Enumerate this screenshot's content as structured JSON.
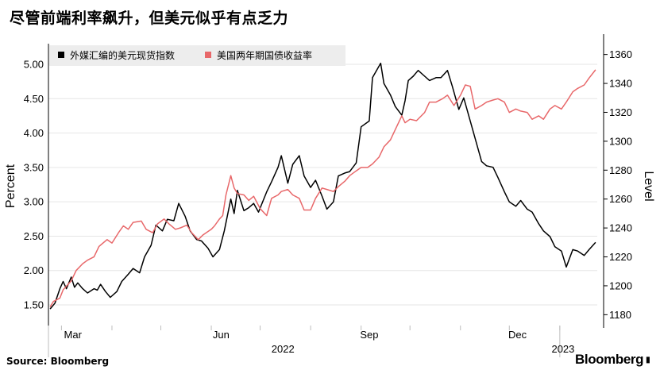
{
  "header": {
    "title": "尽管前端利率飙升，但美元似乎有点乏力"
  },
  "footer": {
    "source": "Source: Bloomberg",
    "brand": "Bloomberg"
  },
  "colors": {
    "dxy": "#000000",
    "yield": "#e8686a",
    "grid": "#e6e6e6",
    "legend_bg": "#ededed",
    "tick": "#bdbdbd"
  },
  "chart_data": {
    "type": "line",
    "title": "尽管前端利率飙升，但美元似乎有点乏力",
    "x_axis": {
      "range": [
        "2022-02-21",
        "2023-01-24"
      ],
      "month_labels": [
        {
          "label": "Mar",
          "date": "2022-03-08"
        },
        {
          "label": "Jun",
          "date": "2022-06-07"
        },
        {
          "label": "Sep",
          "date": "2022-09-06"
        },
        {
          "label": "Dec",
          "date": "2022-12-06"
        }
      ],
      "year_labels": [
        {
          "label": "2022",
          "date": "2022-07-15"
        },
        {
          "label": "2023",
          "date": "2023-01-03"
        }
      ]
    },
    "left_axis": {
      "label": "Percent",
      "range": [
        1.2,
        5.3
      ],
      "ticks": [
        "1.50",
        "2.00",
        "2.50",
        "3.00",
        "3.50",
        "4.00",
        "4.50",
        "5.00"
      ]
    },
    "right_axis": {
      "label": "Level",
      "range": [
        1172.5,
        1367.5
      ],
      "ticks": [
        "1180",
        "1200",
        "1220",
        "1240",
        "1260",
        "1280",
        "1300",
        "1320",
        "1340",
        "1360"
      ]
    },
    "legend": {
      "position": "top-left"
    },
    "series": [
      {
        "name": "外媒汇编的美元现货指数",
        "axis": "right",
        "data": [
          [
            "2022-02-22",
            1184
          ],
          [
            "2022-02-25",
            1188
          ],
          [
            "2022-02-28",
            1198
          ],
          [
            "2022-03-02",
            1203
          ],
          [
            "2022-03-04",
            1198
          ],
          [
            "2022-03-07",
            1206
          ],
          [
            "2022-03-09",
            1199
          ],
          [
            "2022-03-11",
            1202
          ],
          [
            "2022-03-14",
            1198
          ],
          [
            "2022-03-17",
            1195
          ],
          [
            "2022-03-21",
            1198
          ],
          [
            "2022-03-23",
            1197
          ],
          [
            "2022-03-25",
            1201
          ],
          [
            "2022-03-28",
            1196
          ],
          [
            "2022-03-31",
            1192
          ],
          [
            "2022-04-04",
            1196
          ],
          [
            "2022-04-07",
            1203
          ],
          [
            "2022-04-11",
            1208
          ],
          [
            "2022-04-14",
            1212
          ],
          [
            "2022-04-18",
            1209
          ],
          [
            "2022-04-21",
            1220
          ],
          [
            "2022-04-25",
            1228
          ],
          [
            "2022-04-28",
            1242
          ],
          [
            "2022-05-02",
            1238
          ],
          [
            "2022-05-05",
            1246
          ],
          [
            "2022-05-09",
            1245
          ],
          [
            "2022-05-12",
            1257
          ],
          [
            "2022-05-16",
            1248
          ],
          [
            "2022-05-19",
            1238
          ],
          [
            "2022-05-23",
            1232
          ],
          [
            "2022-05-26",
            1231
          ],
          [
            "2022-05-30",
            1226
          ],
          [
            "2022-06-02",
            1220
          ],
          [
            "2022-06-06",
            1225
          ],
          [
            "2022-06-09",
            1238
          ],
          [
            "2022-06-13",
            1260
          ],
          [
            "2022-06-15",
            1250
          ],
          [
            "2022-06-17",
            1266
          ],
          [
            "2022-06-21",
            1252
          ],
          [
            "2022-06-24",
            1254
          ],
          [
            "2022-06-27",
            1257
          ],
          [
            "2022-06-30",
            1251
          ],
          [
            "2022-07-05",
            1265
          ],
          [
            "2022-07-08",
            1272
          ],
          [
            "2022-07-12",
            1282
          ],
          [
            "2022-07-14",
            1290
          ],
          [
            "2022-07-18",
            1271
          ],
          [
            "2022-07-21",
            1284
          ],
          [
            "2022-07-25",
            1290
          ],
          [
            "2022-07-28",
            1276
          ],
          [
            "2022-08-01",
            1268
          ],
          [
            "2022-08-04",
            1273
          ],
          [
            "2022-08-08",
            1262
          ],
          [
            "2022-08-11",
            1253
          ],
          [
            "2022-08-15",
            1258
          ],
          [
            "2022-08-18",
            1276
          ],
          [
            "2022-08-22",
            1278
          ],
          [
            "2022-08-25",
            1279
          ],
          [
            "2022-08-29",
            1285
          ],
          [
            "2022-09-01",
            1310
          ],
          [
            "2022-09-06",
            1314
          ],
          [
            "2022-09-08",
            1344
          ],
          [
            "2022-09-13",
            1354
          ],
          [
            "2022-09-15",
            1340
          ],
          [
            "2022-09-19",
            1332
          ],
          [
            "2022-09-22",
            1324
          ],
          [
            "2022-09-26",
            1318
          ],
          [
            "2022-09-28",
            1328
          ],
          [
            "2022-09-30",
            1342
          ],
          [
            "2022-10-03",
            1345
          ],
          [
            "2022-10-06",
            1349
          ],
          [
            "2022-10-10",
            1345
          ],
          [
            "2022-10-13",
            1342
          ],
          [
            "2022-10-17",
            1344
          ],
          [
            "2022-10-20",
            1344
          ],
          [
            "2022-10-24",
            1349
          ],
          [
            "2022-10-27",
            1338
          ],
          [
            "2022-10-31",
            1322
          ],
          [
            "2022-11-03",
            1330
          ],
          [
            "2022-11-07",
            1314
          ],
          [
            "2022-11-10",
            1302
          ],
          [
            "2022-11-14",
            1286
          ],
          [
            "2022-11-17",
            1283
          ],
          [
            "2022-11-21",
            1282
          ],
          [
            "2022-11-24",
            1275
          ],
          [
            "2022-11-28",
            1265
          ],
          [
            "2022-12-01",
            1258
          ],
          [
            "2022-12-05",
            1255
          ],
          [
            "2022-12-08",
            1259
          ],
          [
            "2022-12-12",
            1253
          ],
          [
            "2022-12-15",
            1251
          ],
          [
            "2022-12-19",
            1243
          ],
          [
            "2022-12-22",
            1238
          ],
          [
            "2022-12-26",
            1234
          ],
          [
            "2022-12-29",
            1227
          ],
          [
            "2023-01-02",
            1224
          ],
          [
            "2023-01-05",
            1213
          ],
          [
            "2023-01-09",
            1225
          ],
          [
            "2023-01-12",
            1224
          ],
          [
            "2023-01-16",
            1221
          ],
          [
            "2023-01-19",
            1225
          ],
          [
            "2023-01-23",
            1230
          ]
        ]
      },
      {
        "name": "美国两年期国债收益率",
        "axis": "left",
        "data": [
          [
            "2022-02-22",
            1.47
          ],
          [
            "2022-02-24",
            1.55
          ],
          [
            "2022-02-28",
            1.6
          ],
          [
            "2022-03-02",
            1.72
          ],
          [
            "2022-03-07",
            1.85
          ],
          [
            "2022-03-10",
            2.0
          ],
          [
            "2022-03-14",
            2.1
          ],
          [
            "2022-03-17",
            2.15
          ],
          [
            "2022-03-21",
            2.2
          ],
          [
            "2022-03-24",
            2.35
          ],
          [
            "2022-03-29",
            2.45
          ],
          [
            "2022-04-01",
            2.4
          ],
          [
            "2022-04-05",
            2.55
          ],
          [
            "2022-04-08",
            2.65
          ],
          [
            "2022-04-11",
            2.6
          ],
          [
            "2022-04-14",
            2.7
          ],
          [
            "2022-04-19",
            2.72
          ],
          [
            "2022-04-22",
            2.6
          ],
          [
            "2022-04-26",
            2.55
          ],
          [
            "2022-04-29",
            2.68
          ],
          [
            "2022-05-03",
            2.75
          ],
          [
            "2022-05-06",
            2.68
          ],
          [
            "2022-05-10",
            2.6
          ],
          [
            "2022-05-13",
            2.62
          ],
          [
            "2022-05-17",
            2.66
          ],
          [
            "2022-05-20",
            2.55
          ],
          [
            "2022-05-24",
            2.45
          ],
          [
            "2022-05-27",
            2.52
          ],
          [
            "2022-06-01",
            2.6
          ],
          [
            "2022-06-03",
            2.65
          ],
          [
            "2022-06-06",
            2.75
          ],
          [
            "2022-06-08",
            2.8
          ],
          [
            "2022-06-10",
            3.1
          ],
          [
            "2022-06-13",
            3.38
          ],
          [
            "2022-06-15",
            3.2
          ],
          [
            "2022-06-17",
            3.12
          ],
          [
            "2022-06-21",
            3.1
          ],
          [
            "2022-06-24",
            3.02
          ],
          [
            "2022-06-27",
            3.08
          ],
          [
            "2022-07-01",
            2.9
          ],
          [
            "2022-07-05",
            2.8
          ],
          [
            "2022-07-08",
            3.05
          ],
          [
            "2022-07-12",
            3.1
          ],
          [
            "2022-07-14",
            3.15
          ],
          [
            "2022-07-18",
            3.18
          ],
          [
            "2022-07-21",
            3.1
          ],
          [
            "2022-07-25",
            3.05
          ],
          [
            "2022-07-28",
            2.88
          ],
          [
            "2022-08-01",
            2.88
          ],
          [
            "2022-08-04",
            3.05
          ],
          [
            "2022-08-08",
            3.2
          ],
          [
            "2022-08-11",
            3.18
          ],
          [
            "2022-08-15",
            3.15
          ],
          [
            "2022-08-18",
            3.22
          ],
          [
            "2022-08-22",
            3.3
          ],
          [
            "2022-08-25",
            3.38
          ],
          [
            "2022-08-29",
            3.45
          ],
          [
            "2022-09-01",
            3.5
          ],
          [
            "2022-09-05",
            3.5
          ],
          [
            "2022-09-08",
            3.55
          ],
          [
            "2022-09-12",
            3.65
          ],
          [
            "2022-09-15",
            3.8
          ],
          [
            "2022-09-19",
            3.9
          ],
          [
            "2022-09-22",
            4.05
          ],
          [
            "2022-09-26",
            4.25
          ],
          [
            "2022-09-28",
            4.15
          ],
          [
            "2022-10-01",
            4.2
          ],
          [
            "2022-10-05",
            4.18
          ],
          [
            "2022-10-10",
            4.3
          ],
          [
            "2022-10-13",
            4.45
          ],
          [
            "2022-10-17",
            4.45
          ],
          [
            "2022-10-21",
            4.5
          ],
          [
            "2022-10-24",
            4.55
          ],
          [
            "2022-10-28",
            4.4
          ],
          [
            "2022-11-01",
            4.55
          ],
          [
            "2022-11-04",
            4.7
          ],
          [
            "2022-11-07",
            4.68
          ],
          [
            "2022-11-10",
            4.35
          ],
          [
            "2022-11-14",
            4.4
          ],
          [
            "2022-11-17",
            4.45
          ],
          [
            "2022-11-21",
            4.48
          ],
          [
            "2022-11-24",
            4.5
          ],
          [
            "2022-11-28",
            4.45
          ],
          [
            "2022-12-01",
            4.3
          ],
          [
            "2022-12-05",
            4.35
          ],
          [
            "2022-12-08",
            4.32
          ],
          [
            "2022-12-12",
            4.3
          ],
          [
            "2022-12-15",
            4.2
          ],
          [
            "2022-12-19",
            4.25
          ],
          [
            "2022-12-22",
            4.2
          ],
          [
            "2022-12-26",
            4.35
          ],
          [
            "2022-12-29",
            4.4
          ],
          [
            "2023-01-02",
            4.35
          ],
          [
            "2023-01-05",
            4.45
          ],
          [
            "2023-01-09",
            4.6
          ],
          [
            "2023-01-12",
            4.65
          ],
          [
            "2023-01-16",
            4.7
          ],
          [
            "2023-01-19",
            4.8
          ],
          [
            "2023-01-23",
            4.92
          ]
        ]
      }
    ]
  }
}
